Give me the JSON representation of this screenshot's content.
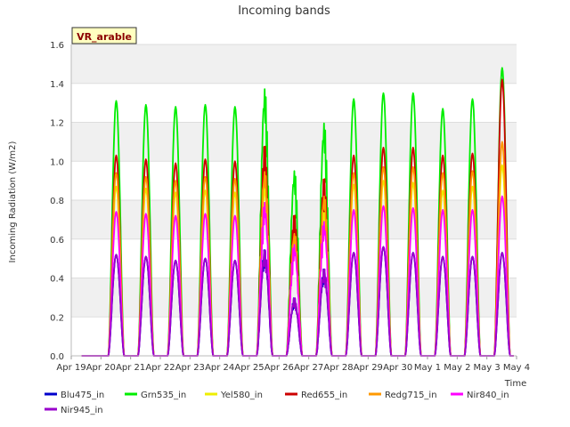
{
  "chart_data": {
    "type": "line",
    "title": "Incoming bands",
    "xlabel": "Time",
    "ylabel": "Incoming Radiation (W/m2)",
    "site_tag": "VR_arable",
    "x_ticks": [
      "Apr 19",
      "Apr 20",
      "Apr 21",
      "Apr 22",
      "Apr 23",
      "Apr 24",
      "Apr 25",
      "Apr 26",
      "Apr 27",
      "Apr 28",
      "Apr 29",
      "Apr 30",
      "May 1",
      "May 2",
      "May 3",
      "May 4"
    ],
    "y_ticks": [
      "0.0",
      "0.2",
      "0.4",
      "0.6",
      "0.8",
      "1.0",
      "1.2",
      "1.4",
      "1.6"
    ],
    "ylim": [
      0.0,
      1.6
    ],
    "xlim_days": [
      0,
      15
    ],
    "grid": "horizontal bands",
    "legend_position": "bottom",
    "series": [
      {
        "name": "Blu475_in",
        "color": "#0000cc",
        "daily_peak": [
          0.52,
          0.51,
          0.49,
          0.5,
          0.49,
          0.55,
          0.3,
          0.45,
          0.53,
          0.56,
          0.53,
          0.51,
          0.51,
          0.53
        ]
      },
      {
        "name": "Grn535_in",
        "color": "#00ee00",
        "daily_peak": [
          1.31,
          1.29,
          1.28,
          1.29,
          1.28,
          1.4,
          0.97,
          1.22,
          1.32,
          1.35,
          1.35,
          1.27,
          1.32,
          1.48
        ]
      },
      {
        "name": "Yel580_in",
        "color": "#eeee00",
        "daily_peak": [
          0.87,
          0.86,
          0.84,
          0.85,
          0.84,
          0.92,
          0.6,
          0.78,
          0.88,
          0.9,
          0.89,
          0.85,
          0.87,
          0.98
        ]
      },
      {
        "name": "Red655_in",
        "color": "#cc0000",
        "daily_peak": [
          1.03,
          1.01,
          0.99,
          1.01,
          1.0,
          1.09,
          0.73,
          0.92,
          1.03,
          1.07,
          1.07,
          1.03,
          1.04,
          1.42
        ]
      },
      {
        "name": "Redg715_in",
        "color": "#ff9900",
        "daily_peak": [
          0.94,
          0.92,
          0.9,
          0.92,
          0.91,
          0.98,
          0.65,
          0.85,
          0.94,
          0.97,
          0.97,
          0.94,
          0.95,
          1.1
        ]
      },
      {
        "name": "Nir840_in",
        "color": "#ff00ff",
        "daily_peak": [
          0.74,
          0.73,
          0.72,
          0.73,
          0.72,
          0.8,
          0.58,
          0.7,
          0.75,
          0.77,
          0.76,
          0.75,
          0.75,
          0.82
        ]
      },
      {
        "name": "Nir945_in",
        "color": "#9900cc",
        "daily_peak": [
          0.52,
          0.51,
          0.49,
          0.5,
          0.49,
          0.55,
          0.3,
          0.45,
          0.53,
          0.56,
          0.53,
          0.51,
          0.51,
          0.53
        ]
      }
    ]
  }
}
